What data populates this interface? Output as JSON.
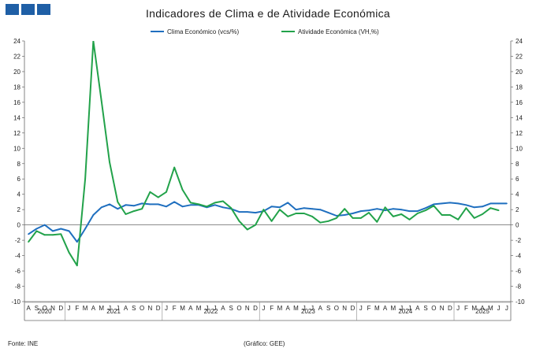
{
  "header": {
    "title": "Indicadores de Clima e de Atividade Económica"
  },
  "footer": {
    "source": "Fonte: INE",
    "credit": "(Gráfico: GEE)"
  },
  "chart_data": {
    "type": "line",
    "title": "Indicadores de Clima e de Atividade Económica",
    "ylim": [
      -10,
      24
    ],
    "y_ticks": [
      -10,
      -8,
      -6,
      -4,
      -2,
      0,
      2,
      4,
      6,
      8,
      10,
      12,
      14,
      16,
      18,
      20,
      22,
      24
    ],
    "grid": false,
    "legend_position": "top",
    "month_labels": [
      "A",
      "S",
      "O",
      "N",
      "D",
      "J",
      "F",
      "M",
      "A",
      "M",
      "J",
      "J",
      "A",
      "S",
      "O",
      "N",
      "D",
      "J",
      "F",
      "M",
      "A",
      "M",
      "J",
      "J",
      "A",
      "S",
      "O",
      "N",
      "D",
      "J",
      "F",
      "M",
      "A",
      "M",
      "J",
      "J",
      "A",
      "S",
      "O",
      "N",
      "D",
      "J",
      "F",
      "M",
      "A",
      "M",
      "J",
      "J",
      "A",
      "S",
      "O",
      "N",
      "D",
      "J",
      "F",
      "M",
      "A",
      "M",
      "J",
      "J"
    ],
    "year_labels": [
      {
        "label": "2020",
        "start": 0,
        "end": 4
      },
      {
        "label": "2021",
        "start": 5,
        "end": 16
      },
      {
        "label": "2022",
        "start": 17,
        "end": 28
      },
      {
        "label": "2023",
        "start": 29,
        "end": 40
      },
      {
        "label": "2024",
        "start": 41,
        "end": 52
      },
      {
        "label": "2025",
        "start": 53,
        "end": 59
      }
    ],
    "series": [
      {
        "name": "Clima Económico (vcs/%)",
        "color": "#1f6fbf",
        "values": [
          -1.2,
          -0.5,
          0.0,
          -0.8,
          -0.5,
          -0.8,
          -2.2,
          -0.5,
          1.3,
          2.3,
          2.7,
          2.1,
          2.6,
          2.5,
          2.8,
          2.7,
          2.7,
          2.4,
          3.0,
          2.4,
          2.6,
          2.6,
          2.3,
          2.6,
          2.3,
          2.1,
          1.7,
          1.7,
          1.6,
          1.8,
          2.4,
          2.3,
          2.9,
          2.0,
          2.2,
          2.1,
          2.0,
          1.6,
          1.2,
          1.3,
          1.5,
          1.8,
          1.9,
          2.1,
          1.9,
          2.1,
          2.0,
          1.8,
          1.8,
          2.2,
          2.7,
          2.8,
          2.9,
          2.8,
          2.6,
          2.3,
          2.4,
          2.8,
          2.8,
          2.8
        ]
      },
      {
        "name": "Atividade Económica (VH,%)",
        "color": "#22a24a",
        "values": [
          -2.2,
          -0.8,
          -1.3,
          -1.3,
          -1.2,
          -3.6,
          -5.3,
          6.0,
          24.0,
          16.2,
          8.2,
          3.0,
          1.4,
          1.8,
          2.1,
          4.3,
          3.6,
          4.3,
          7.5,
          4.6,
          2.9,
          2.7,
          2.4,
          2.9,
          3.1,
          2.2,
          0.5,
          -0.6,
          0.0,
          2.0,
          0.5,
          2.0,
          1.1,
          1.5,
          1.5,
          1.1,
          0.3,
          0.5,
          0.9,
          2.1,
          0.9,
          0.9,
          1.6,
          0.4,
          2.3,
          1.1,
          1.4,
          0.7,
          1.5,
          1.9,
          2.5,
          1.3,
          1.3,
          0.7,
          2.2,
          0.9,
          1.4,
          2.2,
          1.9
        ]
      }
    ]
  }
}
